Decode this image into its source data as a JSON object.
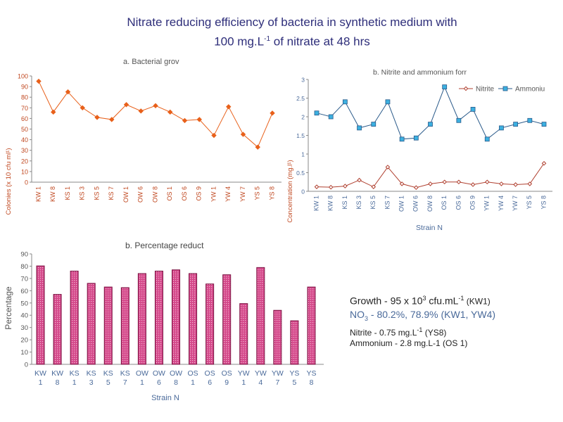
{
  "title": {
    "line1": "Nitrate reducing efficiency of bacteria in synthetic medium with",
    "line2_pre": "100 mg.L",
    "line2_sup": "-1",
    "line2_post": " of nitrate at 48 hrs"
  },
  "summary": {
    "growth_pre": "Growth - 95 x 10",
    "growth_sup1": "3",
    "growth_mid": " cfu.mL",
    "growth_sup2": "-1",
    "growth_post": " (KW1)",
    "no3_pre": "NO",
    "no3_sub": "3",
    "no3_post": " - 80.2%, 78.9% (KW1, YW4)",
    "nitrite_pre": "Nitrite - 0.75 mg.L",
    "nitrite_sup": "-1",
    "nitrite_post": " (YS8)",
    "ammonium": "Ammonium - 2.8 mg.L-1 (OS 1)"
  },
  "chart_data": [
    {
      "type": "line",
      "title": "a. Bacterial grov",
      "ylabel": "Colonies (x 10 cfu ml¹)",
      "xlabel": "",
      "ylim": [
        0,
        100
      ],
      "yticks": [
        0,
        10,
        20,
        30,
        40,
        50,
        60,
        70,
        80,
        90,
        100
      ],
      "grid": false,
      "color": "#e8601a",
      "categories": [
        "KW 1",
        "KW 8",
        "KS 1",
        "KS 3",
        "KS 5",
        "KS 7",
        "OW 1",
        "OW 6",
        "OW 8",
        "OS 1",
        "OS 6",
        "OS 9",
        "YW 1",
        "YW 4",
        "YW 7",
        "YS 5",
        "YS 8"
      ],
      "values": [
        95,
        66,
        85,
        70,
        61,
        59,
        73,
        67,
        72,
        66,
        58,
        59,
        44,
        71,
        45,
        33,
        65
      ]
    },
    {
      "type": "line",
      "title": "b. Nitrite and ammonium forr",
      "ylabel": "Concentration (mg.l¹)",
      "xlabel": "Strain N",
      "ylim": [
        0,
        3
      ],
      "yticks": [
        0,
        0.5,
        1,
        1.5,
        2,
        2.5,
        3
      ],
      "ytick_labels": [
        "0",
        "0.5",
        "1",
        "1.5",
        "2",
        "2.5",
        "3"
      ],
      "grid": false,
      "legend": "top-right",
      "categories": [
        "KW 1",
        "KW 8",
        "KS 1",
        "KS 3",
        "KS 5",
        "KS 7",
        "OW 1",
        "OW 6",
        "OW 8",
        "OS 1",
        "OS 6",
        "OS 9",
        "YW 1",
        "YW 4",
        "YW 7",
        "YS 5",
        "YS 8"
      ],
      "series": [
        {
          "name": "Nitrite",
          "color": "#b04030",
          "values": [
            0.12,
            0.11,
            0.14,
            0.3,
            0.12,
            0.65,
            0.2,
            0.1,
            0.2,
            0.25,
            0.25,
            0.18,
            0.25,
            0.2,
            0.18,
            0.2,
            0.75
          ]
        },
        {
          "name": "Ammoniu",
          "color": "#2a5a8a",
          "values": [
            2.1,
            2.0,
            2.4,
            1.7,
            1.8,
            2.4,
            1.4,
            1.43,
            1.8,
            2.8,
            1.9,
            2.2,
            1.4,
            1.7,
            1.8,
            1.9,
            1.8
          ]
        }
      ]
    },
    {
      "type": "bar",
      "title": "b. Percentage reduct",
      "ylabel": "Percentage",
      "xlabel": "Strain N",
      "ylim": [
        0,
        90
      ],
      "yticks": [
        0,
        10,
        20,
        30,
        40,
        50,
        60,
        70,
        80,
        90
      ],
      "grid": false,
      "color": "#d4488a",
      "categories": [
        [
          "KW",
          "1"
        ],
        [
          "KW",
          "8"
        ],
        [
          "KS",
          "1"
        ],
        [
          "KS",
          "3"
        ],
        [
          "KS",
          "5"
        ],
        [
          "KS",
          "7"
        ],
        [
          "OW",
          "1"
        ],
        [
          "OW",
          "6"
        ],
        [
          "OW",
          "8"
        ],
        [
          "OS",
          "1"
        ],
        [
          "OS",
          "6"
        ],
        [
          "OS",
          "9"
        ],
        [
          "YW",
          "1"
        ],
        [
          "YW",
          "4"
        ],
        [
          "YW",
          "7"
        ],
        [
          "YS",
          "5"
        ],
        [
          "YS",
          "8"
        ]
      ],
      "values": [
        80.2,
        57,
        76,
        66,
        63,
        62.5,
        74,
        76,
        77,
        74,
        65.5,
        73,
        49.5,
        78.9,
        44,
        35.5,
        63
      ]
    }
  ]
}
